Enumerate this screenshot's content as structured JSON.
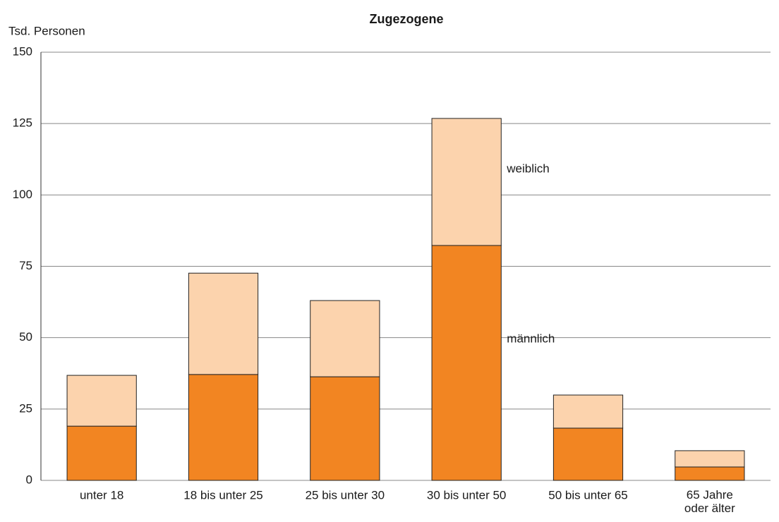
{
  "chart_data": {
    "type": "stacked_bar",
    "title": "Zugezogene",
    "y_label": "Tsd. Personen",
    "categories": [
      "unter 18",
      "18 bis unter 25",
      "25 bis unter 30",
      "30 bis unter 50",
      "50 bis unter 65",
      "65 Jahre\noder älter"
    ],
    "series": [
      {
        "name": "männlich",
        "color": "#f28522",
        "values": [
          19.0,
          37.1,
          36.3,
          82.3,
          18.3,
          4.7
        ]
      },
      {
        "name": "weiblich",
        "color": "#fcd3ad",
        "values": [
          17.8,
          35.5,
          26.7,
          44.5,
          11.6,
          5.7
        ]
      }
    ],
    "ylim": [
      0,
      150
    ],
    "yticks": [
      0,
      25,
      50,
      75,
      100,
      125,
      150
    ],
    "grid": true
  }
}
